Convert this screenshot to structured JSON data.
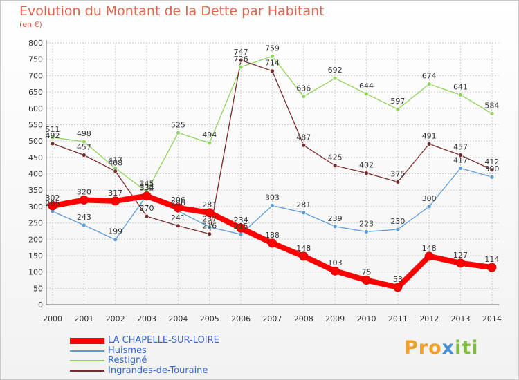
{
  "header": {
    "title": "Evolution du Montant de la Dette par Habitant",
    "subtitle": "(en €)"
  },
  "colors": {
    "title": "#e0634a",
    "axis_text": "#333333",
    "grid": "#cccccc",
    "label_text": "#333333"
  },
  "chart_data": {
    "type": "line",
    "title": "Evolution du Montant de la Dette par Habitant",
    "ylabel": "(en €)",
    "xlabel": "",
    "ylim": [
      0,
      800
    ],
    "yticks": [
      0,
      50,
      100,
      150,
      200,
      250,
      300,
      350,
      400,
      450,
      500,
      550,
      600,
      650,
      700,
      750,
      800
    ],
    "categories": [
      "2000",
      "2001",
      "2002",
      "2003",
      "2004",
      "2005",
      "2006",
      "2007",
      "2008",
      "2009",
      "2010",
      "2011",
      "2012",
      "2013",
      "2014"
    ],
    "grid": true,
    "legend_position": "bottom-left",
    "series": [
      {
        "name": "Huismes",
        "color": "#5b9bd5",
        "values": [
          285,
          243,
          199,
          334,
          286,
          237,
          215,
          303,
          281,
          239,
          223,
          230,
          300,
          417,
          390
        ],
        "labels": [
          "285",
          "243",
          "199",
          "334",
          "286",
          "237",
          "215",
          "303",
          "281",
          "239",
          "223",
          "230",
          "300",
          "417",
          "390"
        ]
      },
      {
        "name": "Restigné",
        "color": "#8fd35a",
        "values": [
          511,
          498,
          417,
          345,
          525,
          494,
          726,
          759,
          636,
          692,
          644,
          597,
          674,
          641,
          584
        ],
        "labels": [
          "511",
          "498",
          "417",
          "345",
          "525",
          "494",
          "726",
          "759",
          "636",
          "692",
          "644",
          "597",
          "674",
          "641",
          "584"
        ]
      },
      {
        "name": "Ingrandes-de-Touraine",
        "color": "#7a2b2b",
        "values": [
          492,
          457,
          408,
          270,
          241,
          216,
          747,
          714,
          487,
          425,
          402,
          375,
          491,
          457,
          412
        ],
        "labels": [
          "492",
          "457",
          "408",
          "270",
          "241",
          "216",
          "747",
          "714",
          "487",
          "425",
          "402",
          "375",
          "491",
          "457",
          "412"
        ]
      },
      {
        "name": "LA CHAPELLE-SUR-LOIRE",
        "color": "#ff0000",
        "values": [
          302,
          320,
          317,
          332,
          296,
          281,
          234,
          188,
          148,
          103,
          75,
          53,
          148,
          127,
          114
        ],
        "labels": [
          "302",
          "320",
          "317",
          "332",
          "296",
          "281",
          "234",
          "188",
          "148",
          "103",
          "75",
          "53",
          "148",
          "127",
          "114"
        ]
      }
    ]
  },
  "legend": [
    {
      "name": "LA CHAPELLE-SUR-LOIRE",
      "color": "#ff0000",
      "text_color": "#3366cc"
    },
    {
      "name": "Huismes",
      "color": "#5b9bd5",
      "text_color": "#3366cc"
    },
    {
      "name": "Restigné",
      "color": "#8fd35a",
      "text_color": "#3366cc"
    },
    {
      "name": "Ingrandes-de-Touraine",
      "color": "#7a2b2b",
      "text_color": "#3366cc"
    }
  ],
  "logo": {
    "part1": "Pro",
    "part2": "x",
    "part3": "iti"
  }
}
